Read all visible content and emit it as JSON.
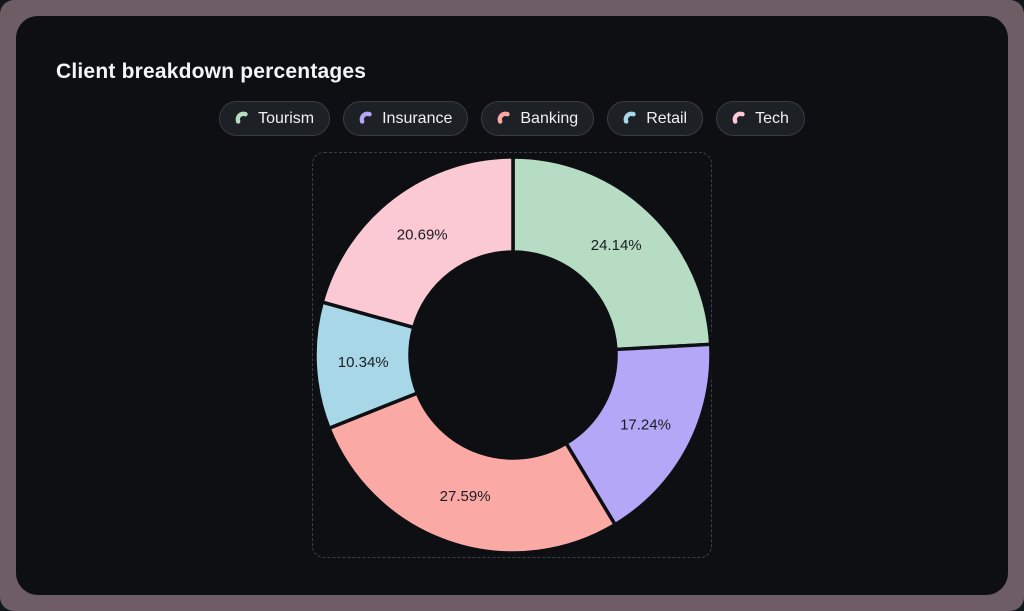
{
  "page": {
    "title": "Client breakdown percentages"
  },
  "colors": {
    "outer_frame": "#6e5d65",
    "card_bg": "#0d0f13",
    "title_text": "#f4f5f6",
    "pill_bg": "#1d2025",
    "pill_border": "#383c43",
    "pill_text": "#eef0f2",
    "plot_dashed_border": "#3c4046",
    "slice_label_text": "#1a1d22",
    "slice_divider": "#0d0f13"
  },
  "legend": {
    "position": "top",
    "items": [
      {
        "label": "Tourism",
        "color": "#b7dcc4"
      },
      {
        "label": "Insurance",
        "color": "#b4a7f7"
      },
      {
        "label": "Banking",
        "color": "#fba9a4"
      },
      {
        "label": "Retail",
        "color": "#a8d8e8"
      },
      {
        "label": "Tech",
        "color": "#fbc9d4"
      }
    ]
  },
  "chart_data": {
    "type": "pie",
    "subtype": "donut",
    "title": "Client breakdown percentages",
    "categories": [
      "Tourism",
      "Insurance",
      "Banking",
      "Retail",
      "Tech"
    ],
    "values": [
      24.14,
      17.24,
      27.59,
      10.34,
      20.69
    ],
    "labels": [
      "24.14%",
      "17.24%",
      "27.59%",
      "10.34%",
      "20.69%"
    ],
    "colors": [
      "#b7dcc4",
      "#b4a7f7",
      "#fba9a4",
      "#a8d8e8",
      "#fbc9d4"
    ],
    "unit": "%",
    "start_angle_deg": 0,
    "direction": "clockwise",
    "inner_radius_ratio": 0.52,
    "grid": false,
    "legend_position": "top"
  }
}
